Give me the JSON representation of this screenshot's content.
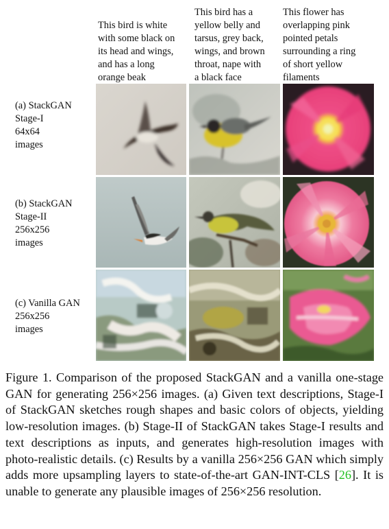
{
  "columns": [
    {
      "text": "This bird is white\nwith some black on\nits head and wings,\nand has a long\norange beak"
    },
    {
      "text": "This bird has a\nyellow belly and\ntarsus, grey back,\nwings, and brown\nthroat, nape with\na black face"
    },
    {
      "text": "This flower has\noverlapping pink\npointed petals\nsurrounding a ring\nof short yellow\nfilaments"
    }
  ],
  "rows": [
    {
      "label": "(a) StackGAN\n      Stage-I\n      64x64\n      images"
    },
    {
      "label": "(b) StackGAN\n      Stage-II\n      256x256\n      images"
    },
    {
      "label": "(c) Vanilla GAN\n      256x256\n      images"
    }
  ],
  "images": [
    {
      "subject": "white-bird",
      "stage": "stage-i"
    },
    {
      "subject": "yellow-bird",
      "stage": "stage-i"
    },
    {
      "subject": "pink-flower",
      "stage": "stage-i"
    },
    {
      "subject": "white-bird",
      "stage": "stage-ii"
    },
    {
      "subject": "yellow-bird",
      "stage": "stage-ii"
    },
    {
      "subject": "pink-flower",
      "stage": "stage-ii"
    },
    {
      "subject": "white-bird",
      "stage": "vanilla"
    },
    {
      "subject": "yellow-bird",
      "stage": "vanilla"
    },
    {
      "subject": "pink-flower",
      "stage": "vanilla"
    }
  ],
  "caption": {
    "before": "Figure 1.  Comparison of the proposed StackGAN and a vanilla one-stage GAN for generating 256×256 images. (a) Given text descriptions, Stage-I of StackGAN sketches rough shapes and basic colors of objects, yielding low-resolution images. (b) Stage-II of StackGAN takes Stage-I results and text descriptions as inputs, and generates high-resolution images with photo-realistic details. (c) Results by a vanilla 256×256 GAN which simply adds more upsampling layers to state-of-the-art GAN-INT-CLS [",
    "citation": "26",
    "after": "]. It is unable to generate any plausible images of 256×256 resolution."
  }
}
